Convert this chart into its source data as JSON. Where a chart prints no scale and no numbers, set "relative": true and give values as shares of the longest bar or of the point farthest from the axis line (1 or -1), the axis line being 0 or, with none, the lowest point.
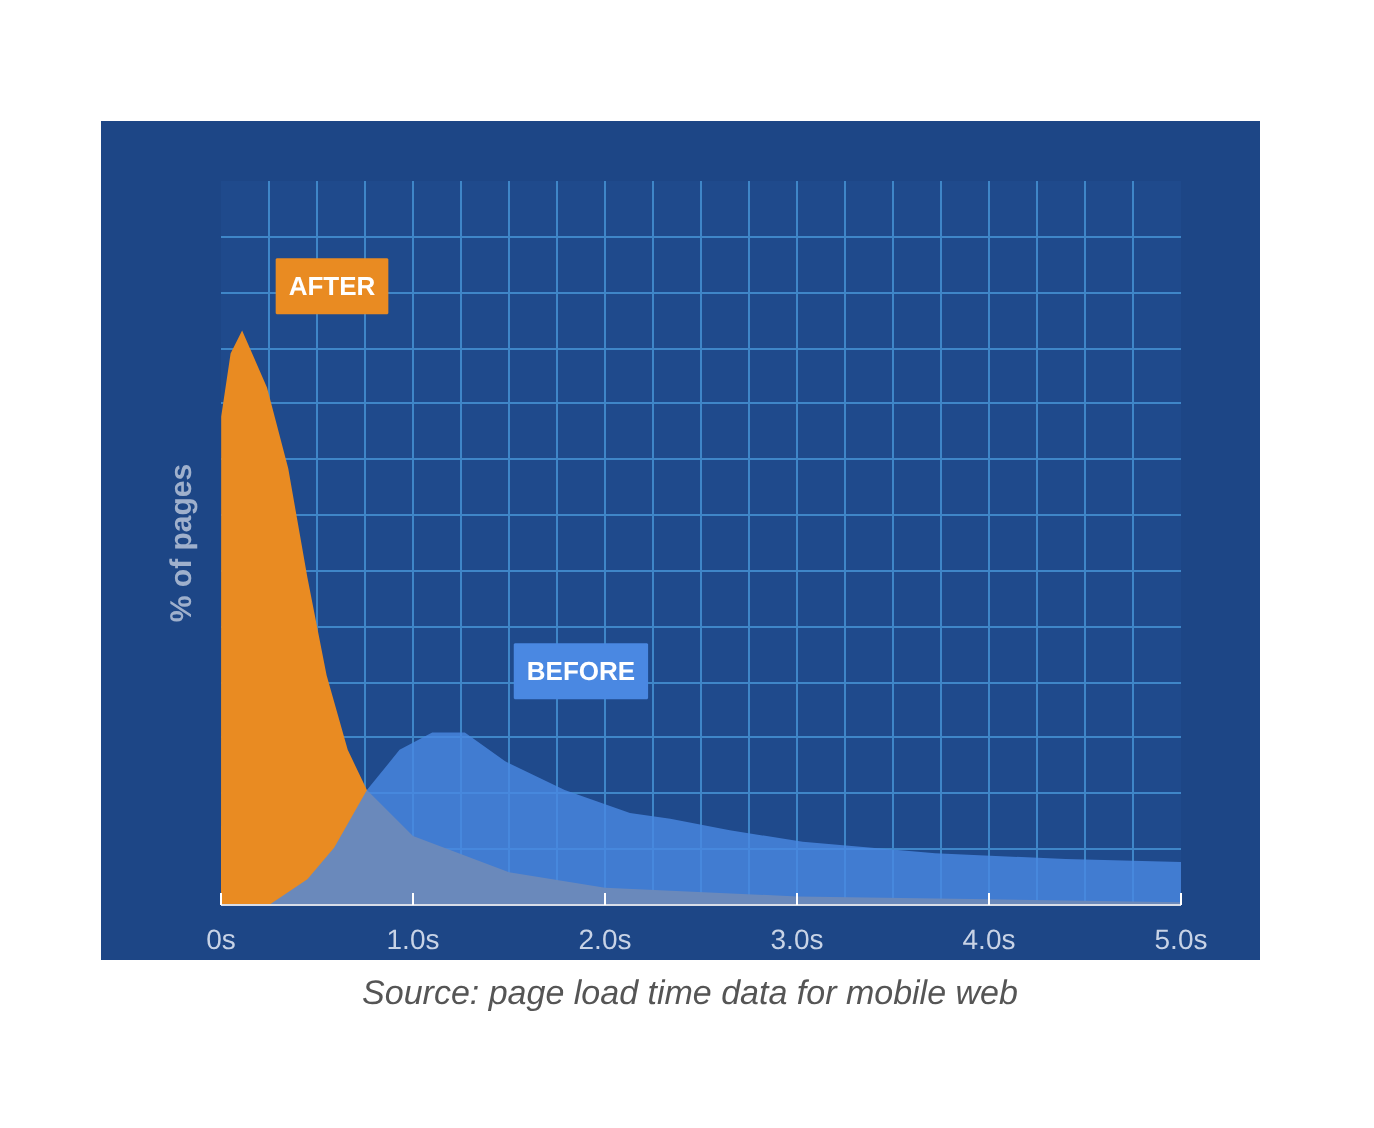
{
  "chart_data": {
    "type": "area",
    "relative": true,
    "xlabel": null,
    "ylabel": "% of pages",
    "xlim": [
      0,
      5
    ],
    "xticks": [
      {
        "value": 0,
        "label": "0s"
      },
      {
        "value": 1,
        "label": "1.0s"
      },
      {
        "value": 2,
        "label": "2.0s"
      },
      {
        "value": 3,
        "label": "3.0s"
      },
      {
        "value": 4,
        "label": "4.0s"
      },
      {
        "value": 5,
        "label": "5.0s"
      }
    ],
    "grid": true,
    "series": [
      {
        "name": "AFTER",
        "color": "#e98b22",
        "x": [
          0,
          0.001,
          0.05,
          0.11,
          0.24,
          0.35,
          0.45,
          0.55,
          0.66,
          0.76,
          1.0,
          1.5,
          2.0,
          3.0,
          4.0,
          5.0
        ],
        "values": [
          0,
          0.85,
          0.96,
          1.0,
          0.9,
          0.76,
          0.57,
          0.4,
          0.27,
          0.2,
          0.12,
          0.057,
          0.03,
          0.015,
          0.01,
          0.005
        ]
      },
      {
        "name": "BEFORE",
        "color": "#4a88e2",
        "x": [
          0.25,
          0.45,
          0.59,
          0.76,
          0.93,
          1.1,
          1.27,
          1.48,
          1.79,
          2.13,
          2.34,
          2.65,
          3.03,
          3.72,
          4.4,
          5.0
        ],
        "values": [
          0,
          0.045,
          0.1,
          0.2,
          0.27,
          0.3,
          0.3,
          0.25,
          0.2,
          0.16,
          0.15,
          0.13,
          0.11,
          0.09,
          0.08,
          0.075
        ]
      }
    ],
    "annotations": [
      "Source: page load time data for mobile web"
    ]
  }
}
